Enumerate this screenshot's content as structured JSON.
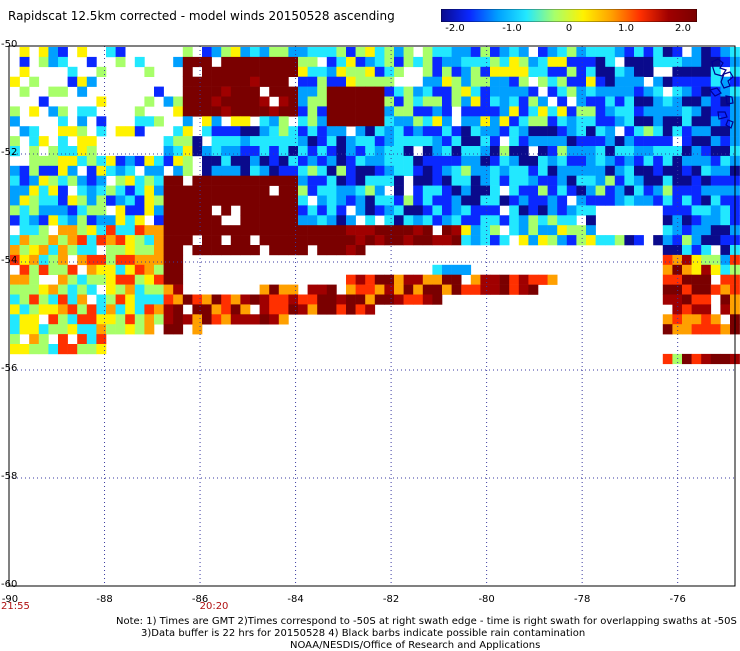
{
  "title": "Rapidscat 12.5km corrected - model winds 20150528 ascending",
  "colorbar": {
    "ticks": [
      {
        "label": "-2.0",
        "value": -2.0
      },
      {
        "label": "-1.0",
        "value": -1.0
      },
      {
        "label": "0",
        "value": 0
      },
      {
        "label": "1.0",
        "value": 1.0
      },
      {
        "label": "2.0",
        "value": 2.0
      }
    ],
    "range": [
      -2.0,
      2.0
    ],
    "colors": [
      "#0a0a8c",
      "#0a28ff",
      "#00a0ff",
      "#22e8ff",
      "#a8ff6a",
      "#fff200",
      "#ffa000",
      "#ff3000",
      "#a00000",
      "#7a0000"
    ]
  },
  "map": {
    "lat_labels": [
      {
        "label": "-50",
        "value": -50
      },
      {
        "label": "-52",
        "value": -52
      },
      {
        "label": "-54",
        "value": -54
      },
      {
        "label": "-56",
        "value": -56
      },
      {
        "label": "-58",
        "value": -58
      },
      {
        "label": "-60",
        "value": -60
      }
    ],
    "lon_labels": [
      {
        "label": "-90",
        "value": -90
      },
      {
        "label": "-88",
        "value": -88
      },
      {
        "label": "-86",
        "value": -86
      },
      {
        "label": "-84",
        "value": -84
      },
      {
        "label": "-82",
        "value": -82
      },
      {
        "label": "-80",
        "value": -80
      },
      {
        "label": "-78",
        "value": -78
      },
      {
        "label": "-76",
        "value": -76
      }
    ],
    "lat_range": [
      -60,
      -50
    ],
    "lon_range": [
      -90,
      -74.8
    ],
    "times": [
      {
        "label": "21:55",
        "lon": -90
      },
      {
        "label": "20:20",
        "lon": -85.8
      }
    ],
    "coast_color": "#000090"
  },
  "notes": {
    "line1": "Note: 1) Times are GMT 2)Times correspond to -50S at right swath edge - time is right swath for overlapping swaths at -50S",
    "line2": "3)Data buffer is 22 hrs for 20150528 4) Black barbs indicate possible rain contamination",
    "line3": "NOAA/NESDIS/Office of Research and Applications"
  }
}
